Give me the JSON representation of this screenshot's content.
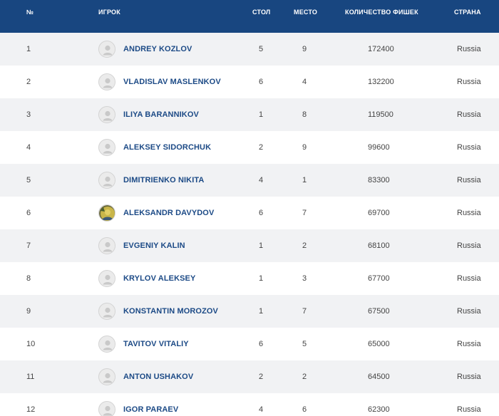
{
  "header": {
    "num": "№",
    "player": "ИГРОК",
    "table": "СТОЛ",
    "place": "МЕСТО",
    "chips": "КОЛИЧЕСТВО ФИШЕК",
    "country": "СТРАНА"
  },
  "rows": [
    {
      "num": "1",
      "name": "ANDREY KOZLOV",
      "table": "5",
      "place": "9",
      "chips": "172400",
      "country": "Russia",
      "avatar": "default-avatar-icon"
    },
    {
      "num": "2",
      "name": "VLADISLAV MASLENKOV",
      "table": "6",
      "place": "4",
      "chips": "132200",
      "country": "Russia",
      "avatar": "default-avatar-icon"
    },
    {
      "num": "3",
      "name": "ILIYA BARANNIKOV",
      "table": "1",
      "place": "8",
      "chips": "119500",
      "country": "Russia",
      "avatar": "default-avatar-icon"
    },
    {
      "num": "4",
      "name": "ALEKSEY SIDORCHUK",
      "table": "2",
      "place": "9",
      "chips": "99600",
      "country": "Russia",
      "avatar": "default-avatar-icon"
    },
    {
      "num": "5",
      "name": "DIMITRIENKO NIKITA",
      "table": "4",
      "place": "1",
      "chips": "83300",
      "country": "Russia",
      "avatar": "default-avatar-icon"
    },
    {
      "num": "6",
      "name": "ALEKSANDR DAVYDOV",
      "table": "6",
      "place": "7",
      "chips": "69700",
      "country": "Russia",
      "avatar": "photo-avatar-icon"
    },
    {
      "num": "7",
      "name": "EVGENIY KALIN",
      "table": "1",
      "place": "2",
      "chips": "68100",
      "country": "Russia",
      "avatar": "default-avatar-icon"
    },
    {
      "num": "8",
      "name": "KRYLOV ALEKSEY",
      "table": "1",
      "place": "3",
      "chips": "67700",
      "country": "Russia",
      "avatar": "default-avatar-icon"
    },
    {
      "num": "9",
      "name": "KONSTANTIN MOROZOV",
      "table": "1",
      "place": "7",
      "chips": "67500",
      "country": "Russia",
      "avatar": "default-avatar-icon"
    },
    {
      "num": "10",
      "name": "TAVITOV VITALIY",
      "table": "6",
      "place": "5",
      "chips": "65000",
      "country": "Russia",
      "avatar": "default-avatar-icon"
    },
    {
      "num": "11",
      "name": "ANTON USHAKOV",
      "table": "2",
      "place": "2",
      "chips": "64500",
      "country": "Russia",
      "avatar": "default-avatar-icon"
    },
    {
      "num": "12",
      "name": "IGOR PARAEV",
      "table": "4",
      "place": "6",
      "chips": "62300",
      "country": "Russia",
      "avatar": "default-avatar-icon"
    }
  ],
  "colors": {
    "header_bg": "#184680",
    "name_text": "#1c4a86",
    "row_stripe": "#f1f2f4"
  }
}
